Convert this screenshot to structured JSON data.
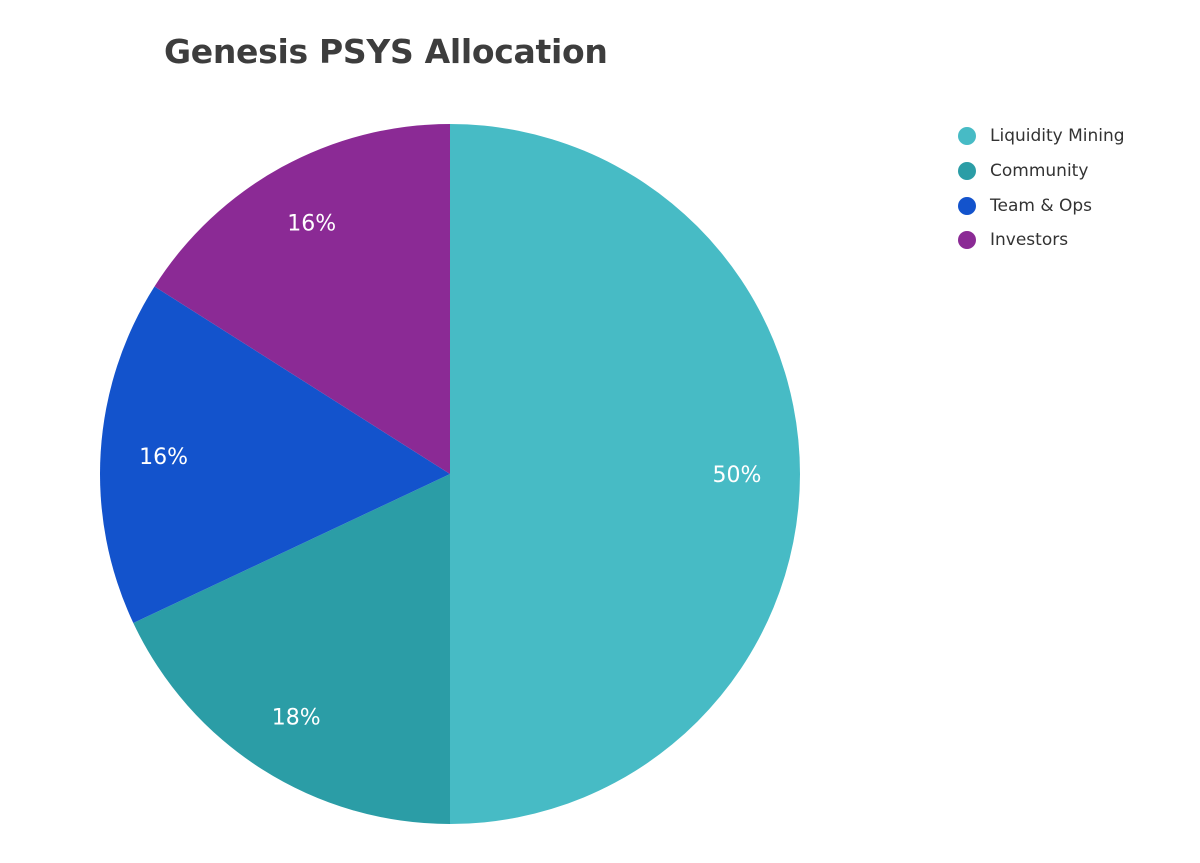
{
  "chart_data": {
    "type": "pie",
    "title": "Genesis PSYS Allocation",
    "categories": [
      "Liquidity Mining",
      "Community",
      "Team & Ops",
      "Investors"
    ],
    "values": [
      50,
      18,
      16,
      16
    ],
    "labels": [
      "50%",
      "18%",
      "16%",
      "16%"
    ],
    "colors": [
      "#47bbc5",
      "#2b9da6",
      "#1353cc",
      "#8b2a95"
    ],
    "legend_position": "right",
    "start_angle_deg": 0,
    "direction": "clockwise"
  },
  "title": "Genesis PSYS Allocation",
  "legend": {
    "items": [
      {
        "label": "Liquidity Mining",
        "color": "#47bbc5"
      },
      {
        "label": "Community",
        "color": "#2b9da6"
      },
      {
        "label": "Team & Ops",
        "color": "#1353cc"
      },
      {
        "label": "Investors",
        "color": "#8b2a95"
      }
    ]
  }
}
